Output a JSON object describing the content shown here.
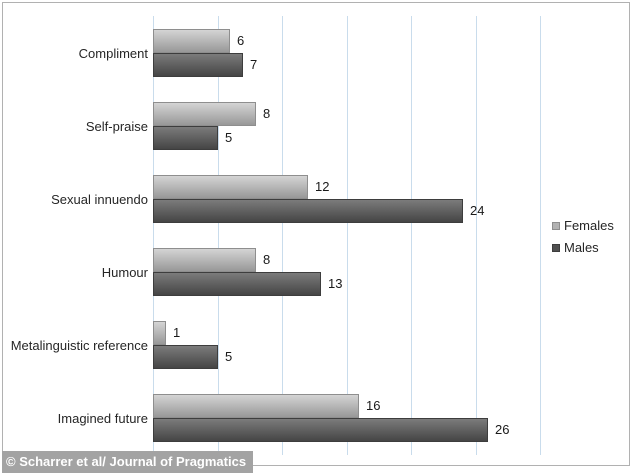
{
  "chart_data": {
    "type": "bar",
    "orientation": "horizontal",
    "title": "",
    "xlabel": "",
    "ylabel": "",
    "categories": [
      "Compliment",
      "Self-praise",
      "Sexual innuendo",
      "Humour",
      "Metalinguistic reference",
      "Imagined future"
    ],
    "series": [
      {
        "name": "Females",
        "values": [
          6,
          8,
          12,
          8,
          1,
          16
        ],
        "color_top": "#d4d4d4",
        "color_bottom": "#989898",
        "border_color": "#8e8e8e",
        "legend_swatch_color": "#b2b2b2"
      },
      {
        "name": "Males",
        "values": [
          7,
          5,
          24,
          13,
          5,
          26
        ],
        "color_top": "#7b7b7b",
        "color_bottom": "#454545",
        "border_color": "#3d3d3d",
        "legend_swatch_color": "#505050"
      }
    ],
    "xlim": [
      0,
      30
    ],
    "gridline_step": 5,
    "grid": "vertical",
    "gridline_color": "#c9dcec",
    "axis_line_color": "#c9dcec",
    "data_labels": true,
    "legend_position": "right"
  },
  "caption": {
    "text": "© Scharrer et al/ Journal of Pragmatics",
    "background_color": "#a3a3a3",
    "text_color": "#ffffff"
  },
  "frame": {
    "border_color": "#b1b1b1"
  }
}
